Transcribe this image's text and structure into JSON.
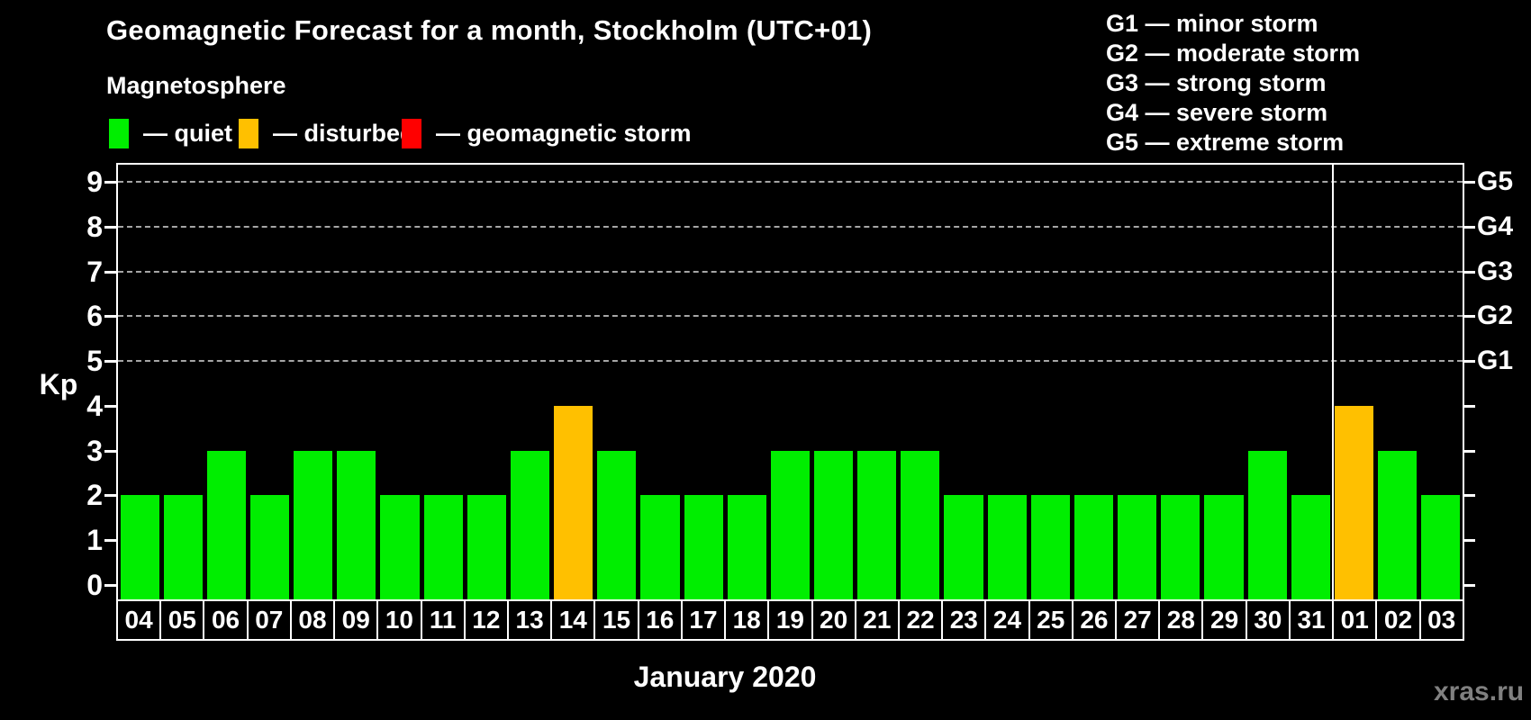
{
  "title": "Geomagnetic Forecast for a month, Stockholm (UTC+01)",
  "subtitle": "Magnetosphere",
  "watermark": "xras.ru",
  "colors": {
    "quiet": "#00ee00",
    "disturbed": "#ffc000",
    "storm": "#ff0000",
    "grid": "#a6a6a6",
    "axis": "#ffffff",
    "background": "#000000",
    "watermark_text": "#808080"
  },
  "legend": {
    "items": [
      {
        "name": "quiet",
        "label": "— quiet",
        "color": "#00ee00"
      },
      {
        "name": "disturbed",
        "label": "— disturbed",
        "color": "#ffc000"
      },
      {
        "name": "storm",
        "label": "— geomagnetic storm",
        "color": "#ff0000"
      }
    ]
  },
  "g_legend": [
    "G1 — minor storm",
    "G2 — moderate storm",
    "G3 — strong storm",
    "G4 — severe storm",
    "G5 — extreme storm"
  ],
  "chart_data": {
    "type": "bar",
    "title": "Geomagnetic Forecast for a month, Stockholm (UTC+01)",
    "xlabel": "January 2020",
    "ylabel": "Kp",
    "ylim": [
      0,
      9
    ],
    "yticks": [
      0,
      1,
      2,
      3,
      4,
      5,
      6,
      7,
      8,
      9
    ],
    "grid_levels": [
      5,
      6,
      7,
      8,
      9
    ],
    "grid_style": "dashed",
    "legend_position": "top",
    "right_axis": [
      {
        "label": "G1",
        "kp": 5
      },
      {
        "label": "G2",
        "kp": 6
      },
      {
        "label": "G3",
        "kp": 7
      },
      {
        "label": "G4",
        "kp": 8
      },
      {
        "label": "G5",
        "kp": 9
      }
    ],
    "month_separator_after_index": 27,
    "bars": [
      {
        "day": "04",
        "kp": 2,
        "status": "quiet"
      },
      {
        "day": "05",
        "kp": 2,
        "status": "quiet"
      },
      {
        "day": "06",
        "kp": 3,
        "status": "quiet"
      },
      {
        "day": "07",
        "kp": 2,
        "status": "quiet"
      },
      {
        "day": "08",
        "kp": 3,
        "status": "quiet"
      },
      {
        "day": "09",
        "kp": 3,
        "status": "quiet"
      },
      {
        "day": "10",
        "kp": 2,
        "status": "quiet"
      },
      {
        "day": "11",
        "kp": 2,
        "status": "quiet"
      },
      {
        "day": "12",
        "kp": 2,
        "status": "quiet"
      },
      {
        "day": "13",
        "kp": 3,
        "status": "quiet"
      },
      {
        "day": "14",
        "kp": 4,
        "status": "disturbed"
      },
      {
        "day": "15",
        "kp": 3,
        "status": "quiet"
      },
      {
        "day": "16",
        "kp": 2,
        "status": "quiet"
      },
      {
        "day": "17",
        "kp": 2,
        "status": "quiet"
      },
      {
        "day": "18",
        "kp": 2,
        "status": "quiet"
      },
      {
        "day": "19",
        "kp": 3,
        "status": "quiet"
      },
      {
        "day": "20",
        "kp": 3,
        "status": "quiet"
      },
      {
        "day": "21",
        "kp": 3,
        "status": "quiet"
      },
      {
        "day": "22",
        "kp": 3,
        "status": "quiet"
      },
      {
        "day": "23",
        "kp": 2,
        "status": "quiet"
      },
      {
        "day": "24",
        "kp": 2,
        "status": "quiet"
      },
      {
        "day": "25",
        "kp": 2,
        "status": "quiet"
      },
      {
        "day": "26",
        "kp": 2,
        "status": "quiet"
      },
      {
        "day": "27",
        "kp": 2,
        "status": "quiet"
      },
      {
        "day": "28",
        "kp": 2,
        "status": "quiet"
      },
      {
        "day": "29",
        "kp": 2,
        "status": "quiet"
      },
      {
        "day": "30",
        "kp": 3,
        "status": "quiet"
      },
      {
        "day": "31",
        "kp": 2,
        "status": "quiet"
      },
      {
        "day": "01",
        "kp": 4,
        "status": "disturbed"
      },
      {
        "day": "02",
        "kp": 3,
        "status": "quiet"
      },
      {
        "day": "03",
        "kp": 2,
        "status": "quiet"
      }
    ]
  }
}
